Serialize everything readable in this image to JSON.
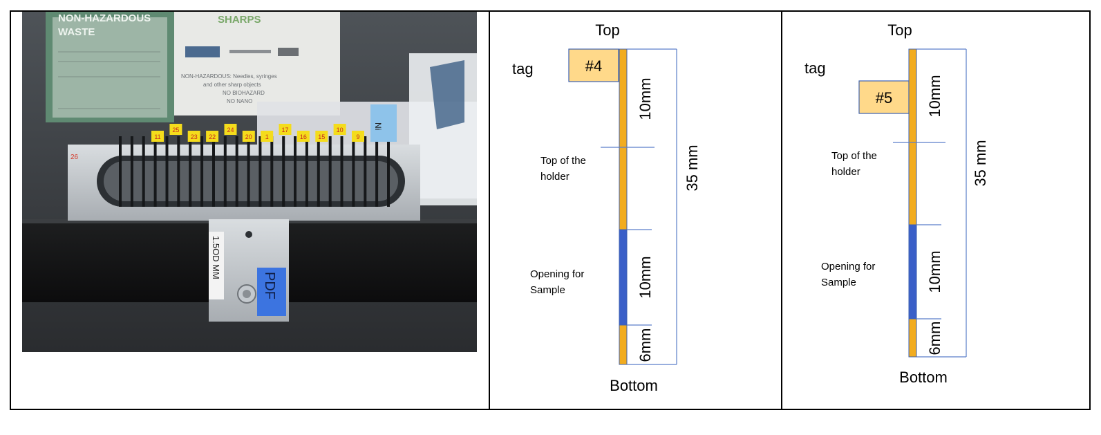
{
  "photo": {
    "waste_sign_line1": "NON-HAZARDOUS",
    "waste_sign_line2": "WASTE",
    "sharps_sign_title": "SHARPS",
    "sharps_sign_line1": "NON-HAZARDOUS: Needles, syringes",
    "sharps_sign_line2": "and other sharp objects",
    "sharps_sign_line3": "NO BIOHAZARD",
    "sharps_sign_line4": "NO NANO",
    "tube_tags": [
      "11",
      "25",
      "23",
      "22",
      "24",
      "20",
      "1",
      "17",
      "16",
      "15",
      "10",
      "9"
    ],
    "corner_tag": "Ni",
    "holder_mark": "26",
    "label_od": "1.5OD MM",
    "label_pdf": "PDF"
  },
  "diagrams": [
    {
      "top_label": "Top",
      "bottom_label": "Bottom",
      "tag_label": "tag",
      "tag_number": "#4",
      "holder_line1": "Top of the",
      "holder_line2": "holder",
      "opening_line1": "Opening for",
      "opening_line2": "Sample",
      "dim_upper": "10mm",
      "dim_opening": "10mm",
      "dim_bottom": "6mm",
      "dim_total": "35 mm"
    },
    {
      "top_label": "Top",
      "bottom_label": "Bottom",
      "tag_label": "tag",
      "tag_number": "#5",
      "holder_line1": "Top of the",
      "holder_line2": "holder",
      "opening_line1": "Opening for",
      "opening_line2": "Sample",
      "dim_upper": "10mm",
      "dim_opening": "10mm",
      "dim_bottom": "6mm",
      "dim_total": "35 mm"
    }
  ],
  "colors": {
    "tube": "#f2ac1f",
    "opening": "#3a5fc8",
    "tag_fill": "#ffd98a",
    "dim_line": "#5b7ec9",
    "pdf_label": "#3c74e0"
  }
}
